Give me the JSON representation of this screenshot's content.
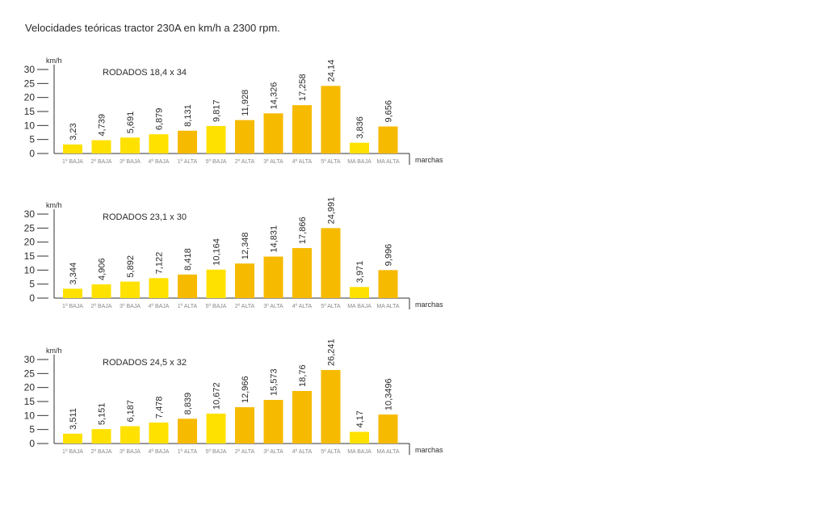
{
  "title": "Velocidades teóricas tractor 230A en km/h a 2300 rpm.",
  "colors": {
    "light": "#FFE100",
    "dark": "#F6BA00",
    "axis": "#333333",
    "text": "#2a2a2a",
    "tick": "#8a8a8a"
  },
  "chart_data": [
    {
      "type": "bar",
      "title": "RODADOS 18,4 x 34",
      "ylabel": "km/h",
      "xlabel": "marchas",
      "ylim": [
        0,
        30
      ],
      "yticks": [
        0,
        5,
        10,
        15,
        20,
        25,
        30
      ],
      "categories": [
        "1º BAJA",
        "2º BAJA",
        "3º BAJA",
        "4º BAJA",
        "1º ALTA",
        "5º BAJA",
        "2º ALTA",
        "3º ALTA",
        "4º ALTA",
        "5º ALTA",
        "MA BAJA",
        "MA ALTA"
      ],
      "values": [
        3.23,
        4.739,
        5.691,
        6.879,
        8.131,
        9.817,
        11.928,
        14.326,
        17.258,
        24.14,
        3.836,
        9.656
      ],
      "labels": [
        "3,23",
        "4,739",
        "5,691",
        "6,879",
        "8,131",
        "9,817",
        "11,928",
        "14,326",
        "17,258",
        "24,14",
        "3,836",
        "9,656"
      ],
      "grid": false
    },
    {
      "type": "bar",
      "title": "RODADOS 23,1 x 30",
      "ylabel": "km/h",
      "xlabel": "marchas",
      "ylim": [
        0,
        30
      ],
      "yticks": [
        0,
        5,
        10,
        15,
        20,
        25,
        30
      ],
      "categories": [
        "1º BAJA",
        "2º BAJA",
        "3º BAJA",
        "4º BAJA",
        "1º ALTA",
        "5º BAJA",
        "2º ALTA",
        "3º ALTA",
        "4º ALTA",
        "5º ALTA",
        "MA BAJA",
        "MA ALTA"
      ],
      "values": [
        3.344,
        4.906,
        5.892,
        7.122,
        8.418,
        10.164,
        12.348,
        14.831,
        17.866,
        24.991,
        3.971,
        9.996
      ],
      "labels": [
        "3,344",
        "4,906",
        "5,892",
        "7,122",
        "8,418",
        "10,164",
        "12,348",
        "14,831",
        "17,866",
        "24,991",
        "3,971",
        "9,996"
      ],
      "grid": false
    },
    {
      "type": "bar",
      "title": "RODADOS 24,5 x 32",
      "ylabel": "km/h",
      "xlabel": "marchas",
      "ylim": [
        0,
        30
      ],
      "yticks": [
        0,
        5,
        10,
        15,
        20,
        25,
        30
      ],
      "categories": [
        "1º BAJA",
        "2º BAJA",
        "3º BAJA",
        "4º BAJA",
        "1º ALTA",
        "5º BAJA",
        "2º ALTA",
        "3º ALTA",
        "4º ALTA",
        "5º ALTA",
        "MA BAJA",
        "MA ALTA"
      ],
      "values": [
        3.511,
        5.151,
        6.187,
        7.478,
        8.839,
        10.672,
        12.966,
        15.573,
        18.76,
        26.241,
        4.17,
        10.3496
      ],
      "labels": [
        "3,511",
        "5,151",
        "6,187",
        "7,478",
        "8,839",
        "10,672",
        "12,966",
        "15,573",
        "18,76",
        "26,241",
        "4,17",
        "10,3496"
      ],
      "grid": false
    }
  ]
}
